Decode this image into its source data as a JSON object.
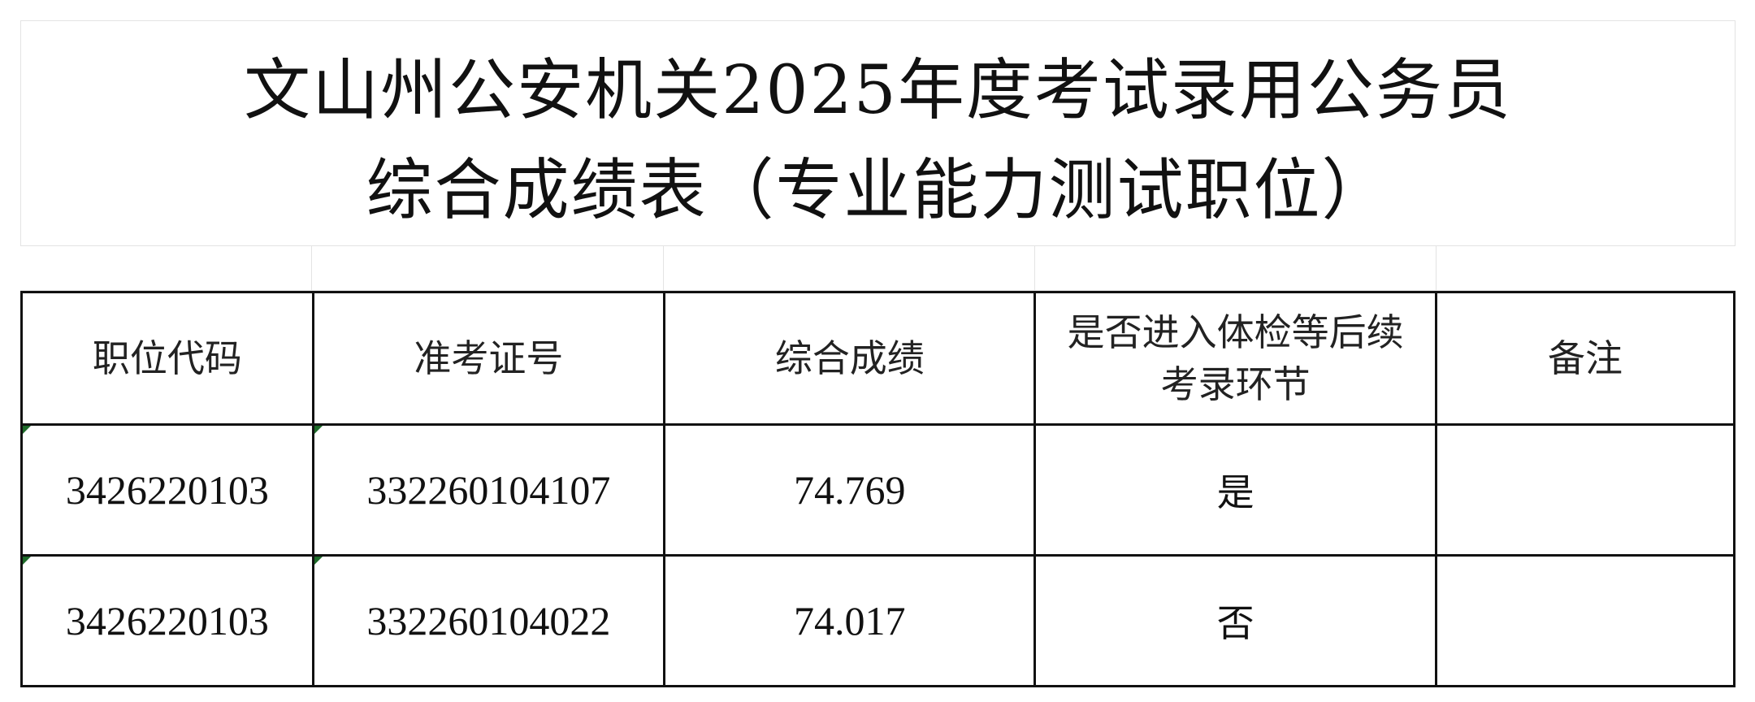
{
  "title": {
    "line1": "文山州公安机关2025年度考试录用公务员",
    "line2": "综合成绩表（专业能力测试职位）"
  },
  "table": {
    "headers": [
      "职位代码",
      "准考证号",
      "综合成绩",
      "是否进入体检等后续考录环节",
      "备注"
    ],
    "rows": [
      [
        "3426220103",
        "332260104107",
        "74.769",
        "是",
        ""
      ],
      [
        "3426220103",
        "332260104022",
        "74.017",
        "否",
        ""
      ]
    ]
  },
  "colors": {
    "text_cell_marker": "#1e6b2a"
  }
}
